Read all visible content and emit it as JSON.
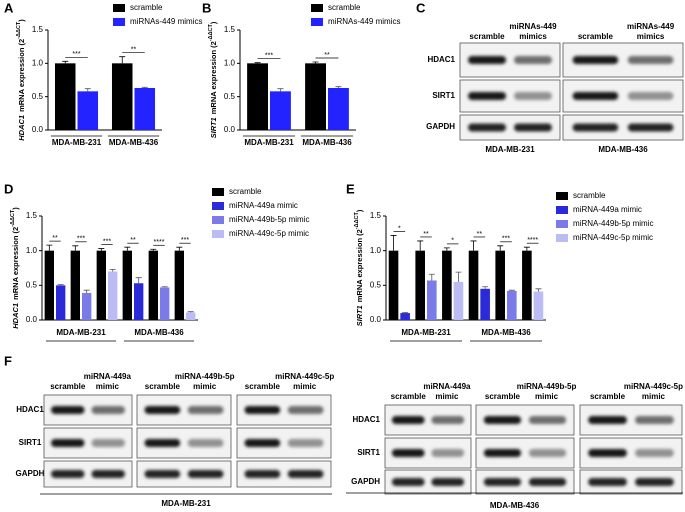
{
  "panel_labels": [
    "A",
    "B",
    "C",
    "D",
    "E",
    "F"
  ],
  "chart_data": [
    {
      "type": "bar",
      "y_label_gene": "HDAC1",
      "y_label": "mRNA expression (2",
      "y_label_sup": "-ΔΔCT",
      "y_label_end": ")",
      "categories": [
        "MDA-MB-231",
        "MDA-MB-436"
      ],
      "series": [
        {
          "name": "scramble",
          "color": "#000000",
          "values": [
            1.0,
            1.0
          ],
          "errors": [
            0.03,
            0.1
          ]
        },
        {
          "name": "miRNAs-449 mimics",
          "color": "#2323ff",
          "values": [
            0.58,
            0.63
          ],
          "errors": [
            0.04,
            0.01
          ]
        }
      ],
      "significance": [
        "***",
        "**"
      ],
      "ylim": [
        0,
        1.5
      ],
      "yticks": [
        {
          "value": 0,
          "label": "0.0"
        },
        0.5,
        {
          "value": 1,
          "label": "1.0"
        },
        1.5
      ]
    },
    {
      "type": "bar",
      "y_label_gene": "SIRT1",
      "y_label": "mRNA expression (2",
      "y_label_sup": "-ΔΔCT",
      "y_label_end": ")",
      "categories": [
        "MDA-MB-231",
        "MDA-MB-436"
      ],
      "series": [
        {
          "name": "scramble",
          "color": "#000000",
          "values": [
            1.0,
            1.0
          ],
          "errors": [
            0.01,
            0.02
          ]
        },
        {
          "name": "miRNAs-449 mimics",
          "color": "#2323ff",
          "values": [
            0.58,
            0.63
          ],
          "errors": [
            0.04,
            0.02
          ]
        }
      ],
      "significance": [
        "***",
        "**"
      ],
      "ylim": [
        0,
        1.5
      ],
      "yticks": [
        {
          "value": 0,
          "label": "0.0"
        },
        0.5,
        {
          "value": 1,
          "label": "1.0"
        },
        1.5
      ]
    },
    {
      "type": "bar",
      "y_label_gene": "HDAC1",
      "y_label": "mRNA expression (2",
      "y_label_sup": "-ΔΔCT",
      "y_label_end": ")",
      "categories": [
        null,
        null,
        null,
        null,
        null,
        null
      ],
      "group_labels": [
        "MDA-MB-231",
        "MDA-MB-436"
      ],
      "series": [
        {
          "name": "scramble",
          "color": "#000000",
          "values": [
            1.0,
            1.0,
            1.0,
            1.0,
            1.0,
            1.0
          ],
          "errors": [
            0.08,
            0.07,
            0.03,
            0.05,
            0.02,
            0.05
          ]
        },
        {
          "name": "miRNA-449a mimic",
          "color": "#2a2ad8",
          "values": [
            0.5,
            null,
            null,
            0.53,
            null,
            null
          ],
          "errors": [
            0.01,
            null,
            null,
            0.08,
            null,
            null
          ]
        },
        {
          "name": "miRNA-449b-5p mimic",
          "color": "#7b7be8",
          "values": [
            null,
            0.39,
            null,
            null,
            0.47,
            null
          ],
          "errors": [
            null,
            0.04,
            null,
            null,
            0.01,
            null
          ]
        },
        {
          "name": "miRNA-449c-5p mimic",
          "color": "#bcbcf4",
          "values": [
            null,
            null,
            0.7,
            null,
            null,
            0.11
          ],
          "errors": [
            null,
            null,
            0.03,
            null,
            null,
            0.01
          ]
        }
      ],
      "significance": [
        "**",
        "***",
        "***",
        "**",
        "****",
        "***"
      ],
      "ylim": [
        0,
        1.5
      ],
      "yticks": [
        {
          "value": 0,
          "label": "0.0"
        },
        0.5,
        {
          "value": 1,
          "label": "1.0"
        },
        1.5
      ]
    },
    {
      "type": "bar",
      "y_label_gene": "SIRT1",
      "y_label": "mRNA expression (2",
      "y_label_sup": "-ΔΔCT",
      "y_label_end": ")",
      "categories": [
        null,
        null,
        null,
        null,
        null,
        null
      ],
      "group_labels": [
        "MDA-MB-231",
        "MDA-MB-436"
      ],
      "series": [
        {
          "name": "scramble",
          "color": "#000000",
          "values": [
            1.0,
            1.0,
            1.0,
            1.0,
            1.0,
            1.0
          ],
          "errors": [
            0.22,
            0.14,
            0.04,
            0.14,
            0.07,
            0.05
          ]
        },
        {
          "name": "miRNA-449a mimic",
          "color": "#2a2ad8",
          "values": [
            0.1,
            null,
            null,
            0.45,
            null,
            null
          ],
          "errors": [
            0.01,
            null,
            null,
            0.03,
            null,
            null
          ]
        },
        {
          "name": "miRNA-449b-5p mimic",
          "color": "#7b7be8",
          "values": [
            null,
            0.57,
            null,
            null,
            0.42,
            null
          ],
          "errors": [
            null,
            0.09,
            null,
            null,
            0.01,
            null
          ]
        },
        {
          "name": "miRNA-449c-5p mimic",
          "color": "#bcbcf4",
          "values": [
            null,
            null,
            0.55,
            null,
            null,
            0.41
          ],
          "errors": [
            null,
            null,
            0.14,
            null,
            null,
            0.04
          ]
        }
      ],
      "significance": [
        "*",
        "**",
        "*",
        "**",
        "***",
        "****"
      ],
      "ylim": [
        0,
        1.5
      ],
      "yticks": [
        {
          "value": 0,
          "label": "0.0"
        },
        0.5,
        {
          "value": 1,
          "label": "1.0"
        },
        1.5
      ]
    }
  ],
  "blot_c": {
    "row_labels": [
      "HDAC1",
      "SIRT1",
      "GAPDH"
    ],
    "panels": [
      {
        "cell_line": "MDA-MB-231",
        "lanes": [
          [
            "scramble"
          ],
          [
            "miRNAs-449",
            "mimics"
          ]
        ]
      },
      {
        "cell_line": "MDA-MB-436",
        "lanes": [
          [
            "scramble"
          ],
          [
            "miRNAs-449",
            "mimics"
          ]
        ]
      }
    ]
  },
  "blot_f": {
    "row_labels": [
      "HDAC1",
      "SIRT1",
      "GAPDH"
    ],
    "groups": [
      {
        "cell_line": "MDA-MB-231",
        "blots": [
          {
            "lanes": [
              [
                "scramble"
              ],
              [
                "miRNA-449a",
                "mimic"
              ]
            ]
          },
          {
            "lanes": [
              [
                "scramble"
              ],
              [
                "miRNA-449b-5p",
                "mimic"
              ]
            ]
          },
          {
            "lanes": [
              [
                "scramble"
              ],
              [
                "miRNA-449c-5p",
                "mimic"
              ]
            ]
          }
        ]
      },
      {
        "cell_line": "MDA-MB-436",
        "blots": [
          {
            "lanes": [
              [
                "scramble"
              ],
              [
                "miRNA-449a",
                "mimic"
              ]
            ]
          },
          {
            "lanes": [
              [
                "scramble"
              ],
              [
                "miRNA-449b-5p",
                "mimic"
              ]
            ]
          },
          {
            "lanes": [
              [
                "scramble"
              ],
              [
                "miRNA-449c-5p",
                "mimic"
              ]
            ]
          }
        ]
      }
    ]
  }
}
